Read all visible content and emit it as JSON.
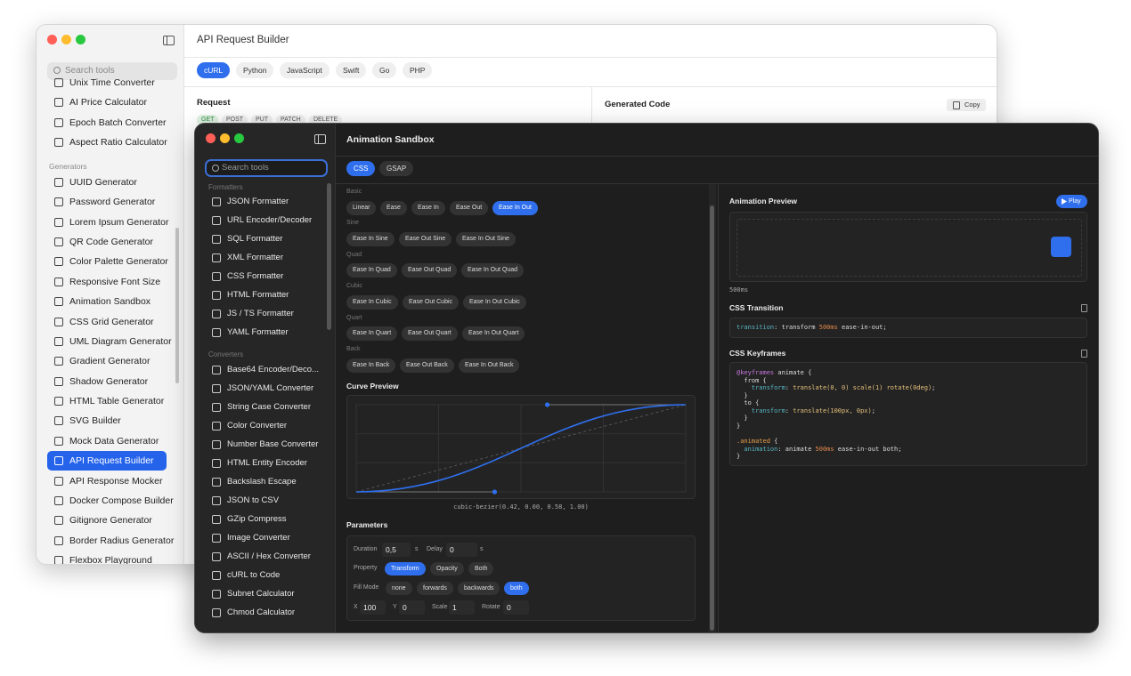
{
  "back_window": {
    "title": "API Request Builder",
    "search": "Search tools",
    "sidebar_top": [
      "Unix Time Converter",
      "AI Price Calculator",
      "Epoch Batch Converter",
      "Aspect Ratio Calculator"
    ],
    "section": "Generators",
    "sidebar_items": [
      "UUID Generator",
      "Password Generator",
      "Lorem Ipsum Generator",
      "QR Code Generator",
      "Color Palette Generator",
      "Responsive Font Size",
      "Animation Sandbox",
      "CSS Grid Generator",
      "UML Diagram Generator",
      "Gradient Generator",
      "Shadow Generator",
      "HTML Table Generator",
      "SVG Builder",
      "Mock Data Generator",
      "API Request Builder",
      "API Response Mocker",
      "Docker Compose Builder",
      "Gitignore Generator",
      "Border Radius Generator",
      "Flexbox Playground"
    ],
    "active_item": 14,
    "languages": [
      "cURL",
      "Python",
      "JavaScript",
      "Swift",
      "Go",
      "PHP"
    ],
    "active_language": 0,
    "request_label": "Request",
    "methods": [
      "GET",
      "POST",
      "PUT",
      "PATCH",
      "DELETE"
    ],
    "active_method": 0,
    "generated_code": "Generated Code",
    "copy": "Copy"
  },
  "front_window": {
    "title": "Animation Sandbox",
    "search": "Search tools",
    "formatters_label": "Formatters",
    "formatters": [
      "JSON Formatter",
      "URL Encoder/Decoder",
      "SQL Formatter",
      "XML Formatter",
      "CSS Formatter",
      "HTML Formatter",
      "JS / TS Formatter",
      "YAML Formatter"
    ],
    "converters_label": "Converters",
    "converters": [
      "Base64 Encoder/Deco...",
      "JSON/YAML Converter",
      "String Case Converter",
      "Color Converter",
      "Number Base Converter",
      "HTML Entity Encoder",
      "Backslash Escape",
      "JSON to CSV",
      "GZip Compress",
      "Image Converter",
      "ASCII / Hex Converter",
      "cURL to Code",
      "Subnet Calculator",
      "Chmod Calculator"
    ],
    "tabs": [
      "CSS",
      "GSAP"
    ],
    "active_tab": 0,
    "easing_groups": [
      {
        "name": "Basic",
        "options": [
          "Linear",
          "Ease",
          "Ease In",
          "Ease Out",
          "Ease In Out"
        ]
      },
      {
        "name": "Sine",
        "options": [
          "Ease In Sine",
          "Ease Out Sine",
          "Ease In Out Sine"
        ]
      },
      {
        "name": "Quad",
        "options": [
          "Ease In Quad",
          "Ease Out Quad",
          "Ease In Out Quad"
        ]
      },
      {
        "name": "Cubic",
        "options": [
          "Ease In Cubic",
          "Ease Out Cubic",
          "Ease In Out Cubic"
        ]
      },
      {
        "name": "Quart",
        "options": [
          "Ease In Quart",
          "Ease Out Quart",
          "Ease In Out Quart"
        ]
      },
      {
        "name": "Back",
        "options": [
          "Ease In Back",
          "Ease Out Back",
          "Ease In Out Back"
        ]
      }
    ],
    "active_easing": [
      0,
      4
    ],
    "curve_title": "Curve Preview",
    "curve_label": "cubic-bezier(0.42, 0.00, 0.58, 1.00)",
    "parameters_title": "Parameters",
    "duration_label": "Duration",
    "duration": "0,5",
    "duration_unit": "s",
    "delay_label": "Delay",
    "delay": "0",
    "delay_unit": "s",
    "property_label": "Property",
    "properties": [
      "Transform",
      "Opacity",
      "Both"
    ],
    "active_property": 0,
    "fill_mode_label": "Fill Mode",
    "fill_modes": [
      "none",
      "forwards",
      "backwards",
      "both"
    ],
    "active_fill_mode": 3,
    "transform_fields": [
      {
        "label": "X",
        "value": "100"
      },
      {
        "label": "Y",
        "value": "0"
      },
      {
        "label": "Scale",
        "value": "1"
      },
      {
        "label": "Rotate",
        "value": "0"
      }
    ],
    "preview_title": "Animation Preview",
    "play": "Play",
    "duration_display": "500ms",
    "transition_title": "CSS Transition",
    "transition_code": [
      [
        "transition",
        ": transform ",
        "500ms",
        " ease-in-out;"
      ]
    ],
    "keyframes_title": "CSS Keyframes",
    "keyframes_code": [
      [
        "@keyframes",
        " animate {"
      ],
      [
        "  from {"
      ],
      [
        "    transform",
        ": ",
        "translate(0, 0) scale(1) rotate(0deg)",
        ";"
      ],
      [
        "  }"
      ],
      [
        "  to {"
      ],
      [
        "    transform",
        ": ",
        "translate(100px, 0px)",
        ";"
      ],
      [
        "  }"
      ],
      [
        "}"
      ]
    ],
    "animated_code": [
      [
        ".animated",
        " {"
      ],
      [
        "  animation",
        ": animate ",
        "500ms",
        " ease-in-out both;"
      ],
      [
        "}"
      ]
    ]
  }
}
